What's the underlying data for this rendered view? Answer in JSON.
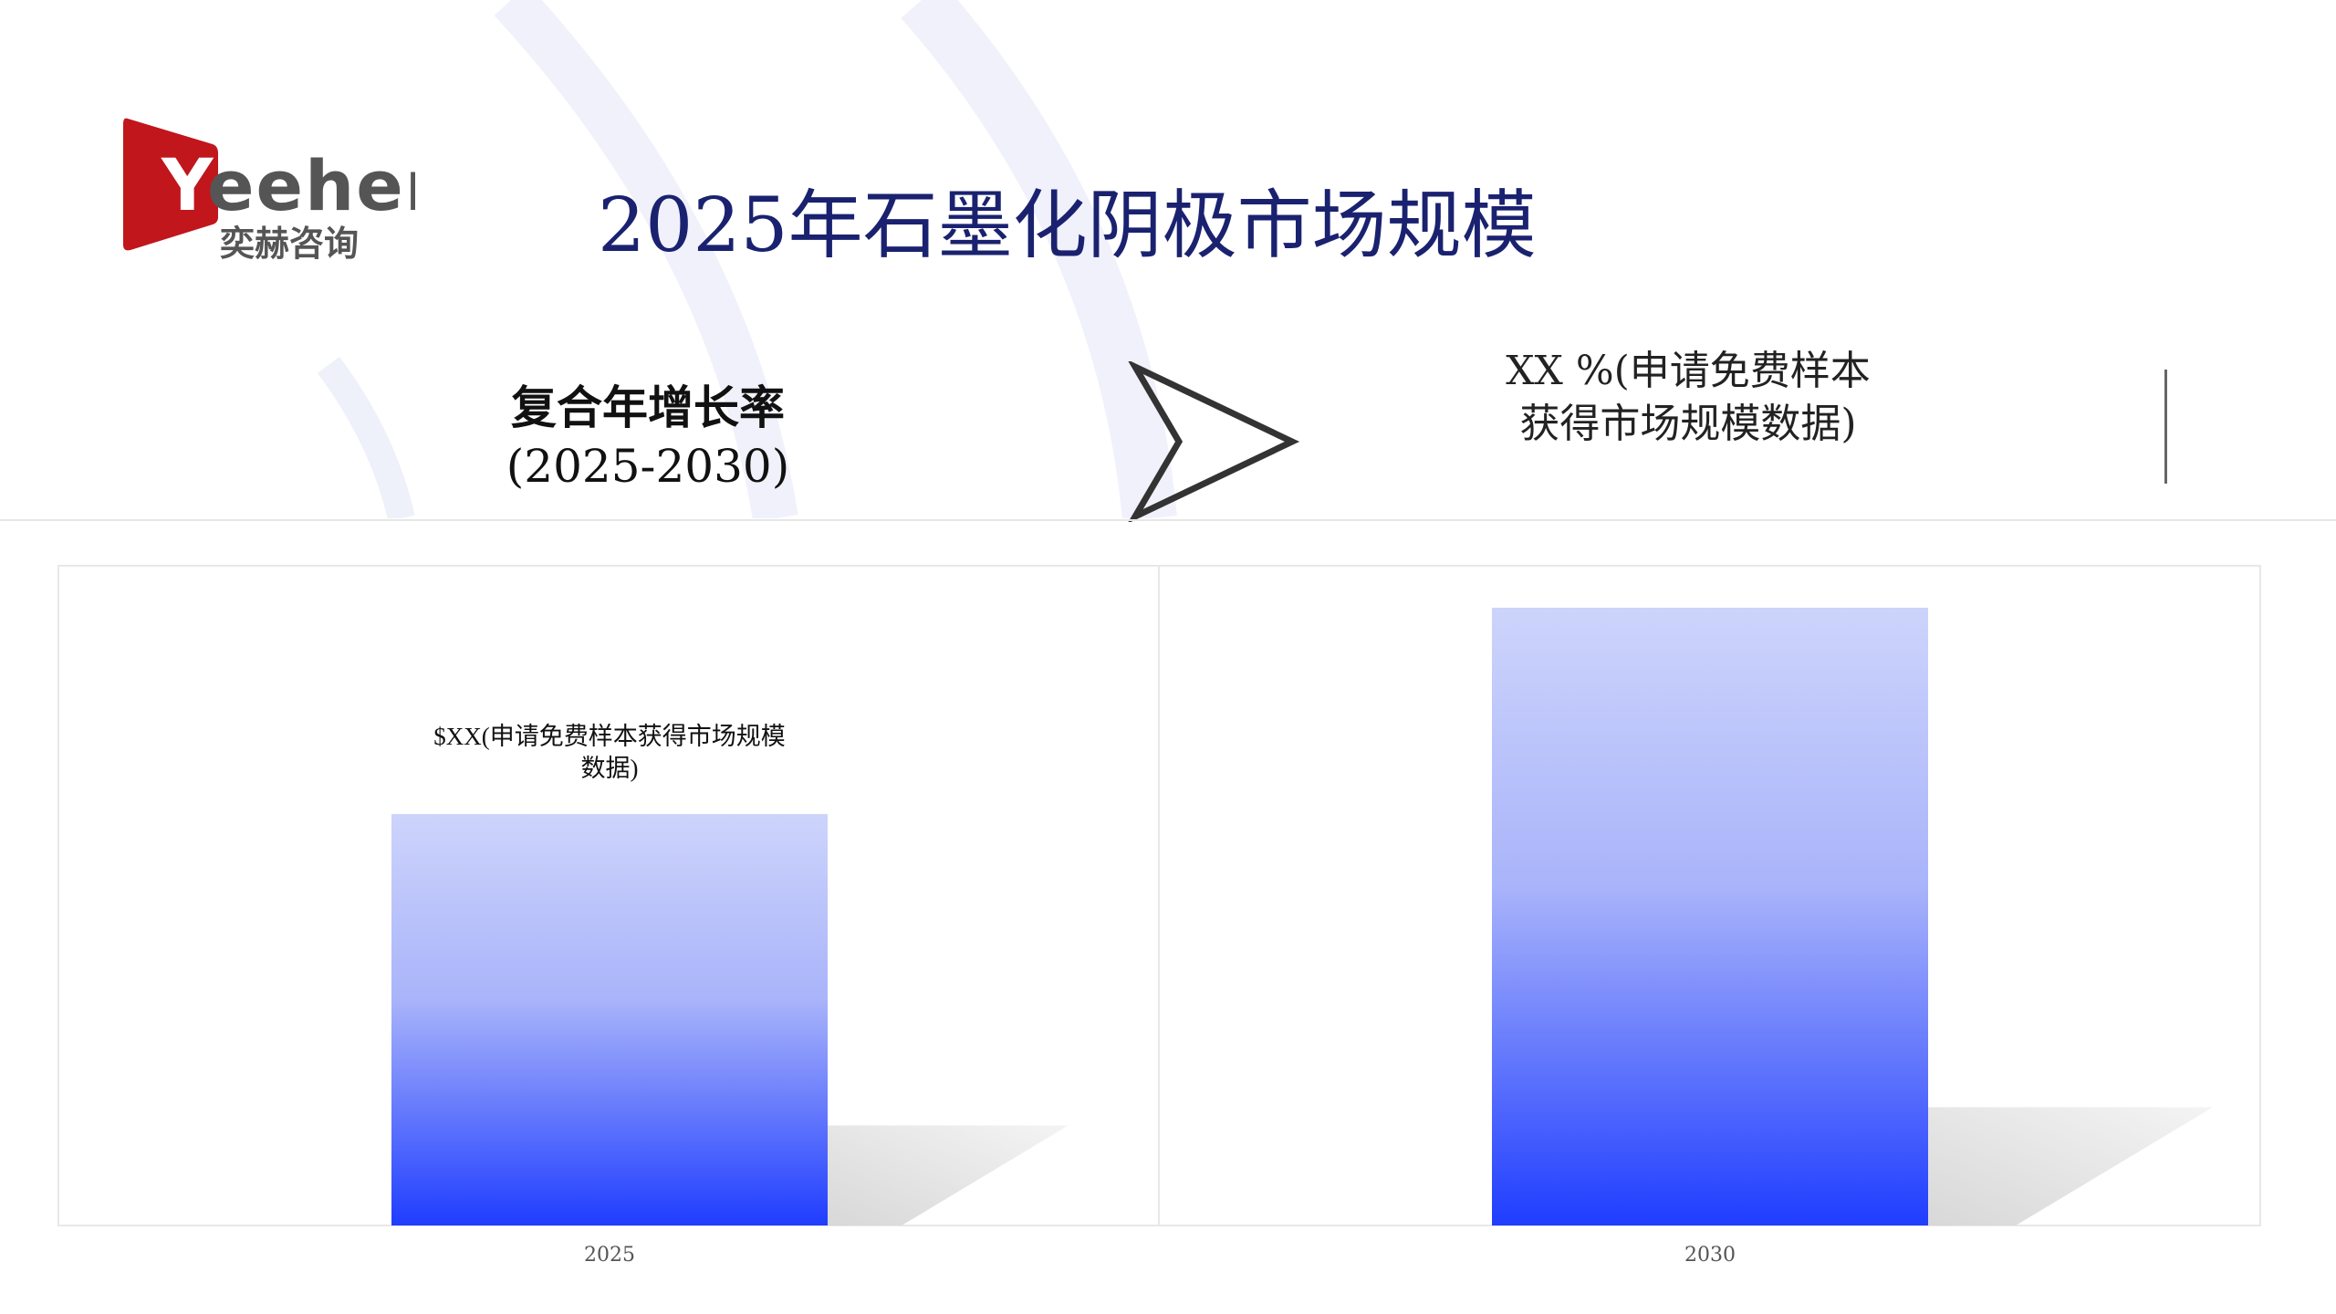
{
  "logo": {
    "text_en": "Yeeher",
    "text_cn": "奕赫咨询",
    "brand_color": "#c0161c"
  },
  "title": "2025年石墨化阴极市场规模",
  "cagr": {
    "label": "复合年增长率",
    "period": "(2025-2030)"
  },
  "arrow_icon": "chevron-arrow-right",
  "cagr_value": {
    "line1": "XX %(申请免费样本",
    "line2": "获得市场规模数据)"
  },
  "chart_data": {
    "type": "bar",
    "categories": [
      "2025",
      "2030"
    ],
    "values": [
      66.6,
      100
    ],
    "data_labels": [
      "$XX(申请免费样本获得市场规模数据)",
      ""
    ],
    "bar_gradient": [
      "#cdd4fb",
      "#1f3dff"
    ],
    "grid": false,
    "title": "",
    "xlabel": "",
    "ylabel": ""
  }
}
